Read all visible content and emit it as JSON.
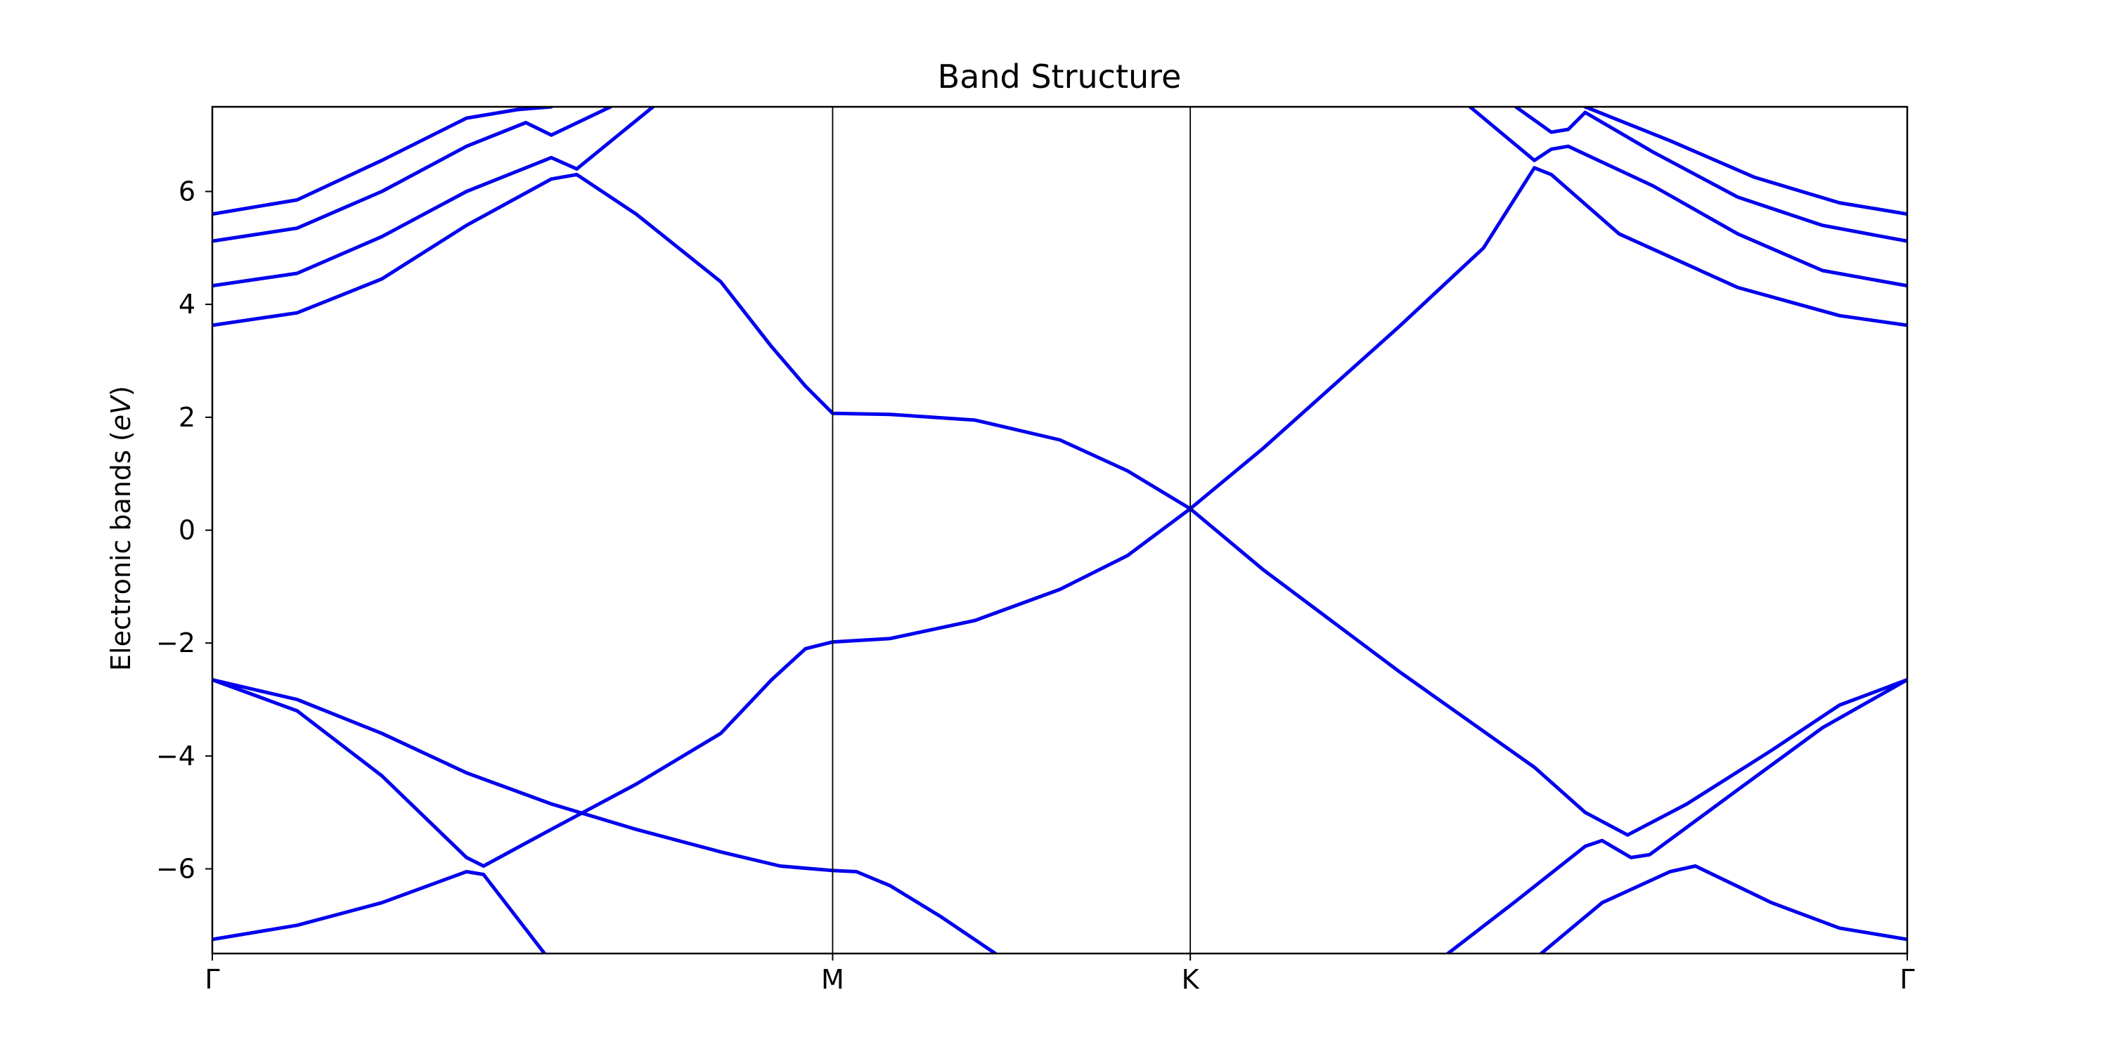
{
  "chart_data": {
    "type": "line",
    "title": "Band Structure",
    "xlabel": "",
    "ylabel": "Electronic bands",
    "ylabel_unit": "eV",
    "xlim": [
      0,
      1
    ],
    "ylim": [
      -7.5,
      7.5
    ],
    "x_ticks": [
      {
        "label": "Γ",
        "x": 0.0
      },
      {
        "label": "M",
        "x": 0.366
      },
      {
        "label": "K",
        "x": 0.577
      },
      {
        "label": "Γ",
        "x": 1.0
      }
    ],
    "y_ticks": [
      "−6",
      "−4",
      "−2",
      "0",
      "2",
      "4",
      "6"
    ],
    "y_tick_values": [
      -6,
      -4,
      -2,
      0,
      2,
      4,
      6
    ],
    "grid": false,
    "line_color": "#0000ee",
    "series": [
      {
        "values": [
          [
            0.0,
            3.63
          ],
          [
            0.05,
            3.85
          ],
          [
            0.1,
            4.45
          ],
          [
            0.15,
            5.4
          ],
          [
            0.2,
            6.22
          ],
          [
            0.215,
            6.3
          ],
          [
            0.25,
            5.6
          ],
          [
            0.3,
            4.4
          ],
          [
            0.33,
            3.25
          ],
          [
            0.35,
            2.55
          ],
          [
            0.366,
            2.07
          ],
          [
            0.4,
            2.05
          ],
          [
            0.45,
            1.95
          ],
          [
            0.5,
            1.6
          ],
          [
            0.54,
            1.05
          ],
          [
            0.577,
            0.38
          ],
          [
            0.62,
            -0.7
          ],
          [
            0.7,
            -2.5
          ],
          [
            0.78,
            -4.2
          ],
          [
            0.81,
            -5.0
          ],
          [
            0.835,
            -5.4
          ],
          [
            0.87,
            -4.85
          ],
          [
            0.92,
            -3.9
          ],
          [
            0.96,
            -3.1
          ],
          [
            1.0,
            -2.65
          ]
        ]
      },
      {
        "values": [
          [
            0.0,
            4.33
          ],
          [
            0.05,
            4.55
          ],
          [
            0.1,
            5.2
          ],
          [
            0.15,
            6.0
          ],
          [
            0.2,
            6.6
          ],
          [
            0.215,
            6.4
          ],
          [
            0.26,
            7.5
          ]
        ]
      },
      {
        "values": [
          [
            0.0,
            5.12
          ],
          [
            0.05,
            5.35
          ],
          [
            0.1,
            6.0
          ],
          [
            0.15,
            6.8
          ],
          [
            0.185,
            7.22
          ],
          [
            0.2,
            7.0
          ],
          [
            0.235,
            7.5
          ]
        ]
      },
      {
        "values": [
          [
            0.0,
            5.6
          ],
          [
            0.05,
            5.85
          ],
          [
            0.1,
            6.55
          ],
          [
            0.15,
            7.3
          ],
          [
            0.18,
            7.45
          ],
          [
            0.2,
            7.5
          ]
        ]
      },
      {
        "values": [
          [
            0.0,
            -2.65
          ],
          [
            0.05,
            -3.2
          ],
          [
            0.1,
            -4.35
          ],
          [
            0.15,
            -5.8
          ],
          [
            0.16,
            -5.95
          ],
          [
            0.2,
            -5.3
          ],
          [
            0.25,
            -4.5
          ],
          [
            0.3,
            -3.6
          ],
          [
            0.33,
            -2.65
          ],
          [
            0.35,
            -2.1
          ],
          [
            0.366,
            -1.98
          ],
          [
            0.4,
            -1.92
          ],
          [
            0.45,
            -1.6
          ],
          [
            0.5,
            -1.05
          ],
          [
            0.54,
            -0.45
          ],
          [
            0.577,
            0.38
          ],
          [
            0.62,
            1.45
          ],
          [
            0.7,
            3.6
          ],
          [
            0.75,
            5.0
          ],
          [
            0.78,
            6.42
          ],
          [
            0.79,
            6.3
          ],
          [
            0.83,
            5.25
          ],
          [
            0.9,
            4.3
          ],
          [
            0.96,
            3.8
          ],
          [
            1.0,
            3.63
          ]
        ]
      },
      {
        "values": [
          [
            0.0,
            -2.65
          ],
          [
            0.05,
            -3.0
          ],
          [
            0.1,
            -3.6
          ],
          [
            0.15,
            -4.3
          ],
          [
            0.2,
            -4.85
          ],
          [
            0.25,
            -5.3
          ],
          [
            0.3,
            -5.7
          ],
          [
            0.335,
            -5.95
          ],
          [
            0.366,
            -6.03
          ],
          [
            0.38,
            -6.05
          ],
          [
            0.4,
            -6.3
          ],
          [
            0.43,
            -6.85
          ],
          [
            0.462,
            -7.5
          ]
        ]
      },
      {
        "values": [
          [
            0.0,
            -7.25
          ],
          [
            0.05,
            -7.0
          ],
          [
            0.1,
            -6.6
          ],
          [
            0.15,
            -6.05
          ],
          [
            0.16,
            -6.1
          ],
          [
            0.196,
            -7.5
          ]
        ]
      },
      {
        "values": [
          [
            0.729,
            -7.5
          ],
          [
            0.77,
            -6.55
          ],
          [
            0.81,
            -5.6
          ],
          [
            0.82,
            -5.5
          ],
          [
            0.837,
            -5.8
          ],
          [
            0.848,
            -5.75
          ],
          [
            0.9,
            -4.6
          ],
          [
            0.95,
            -3.5
          ],
          [
            1.0,
            -2.65
          ]
        ]
      },
      {
        "values": [
          [
            0.784,
            -7.5
          ],
          [
            0.82,
            -6.6
          ],
          [
            0.86,
            -6.05
          ],
          [
            0.875,
            -5.95
          ],
          [
            0.92,
            -6.6
          ],
          [
            0.96,
            -7.05
          ],
          [
            1.0,
            -7.25
          ]
        ]
      },
      {
        "values": [
          [
            0.742,
            7.5
          ],
          [
            0.78,
            6.55
          ],
          [
            0.79,
            6.75
          ],
          [
            0.8,
            6.8
          ],
          [
            0.85,
            6.1
          ],
          [
            0.9,
            5.25
          ],
          [
            0.95,
            4.6
          ],
          [
            1.0,
            4.33
          ]
        ]
      },
      {
        "values": [
          [
            0.769,
            7.5
          ],
          [
            0.79,
            7.05
          ],
          [
            0.8,
            7.1
          ],
          [
            0.81,
            7.4
          ],
          [
            0.85,
            6.7
          ],
          [
            0.9,
            5.9
          ],
          [
            0.95,
            5.4
          ],
          [
            1.0,
            5.12
          ]
        ]
      },
      {
        "values": [
          [
            0.81,
            7.5
          ],
          [
            0.86,
            6.9
          ],
          [
            0.91,
            6.25
          ],
          [
            0.96,
            5.8
          ],
          [
            1.0,
            5.6
          ]
        ]
      }
    ]
  }
}
